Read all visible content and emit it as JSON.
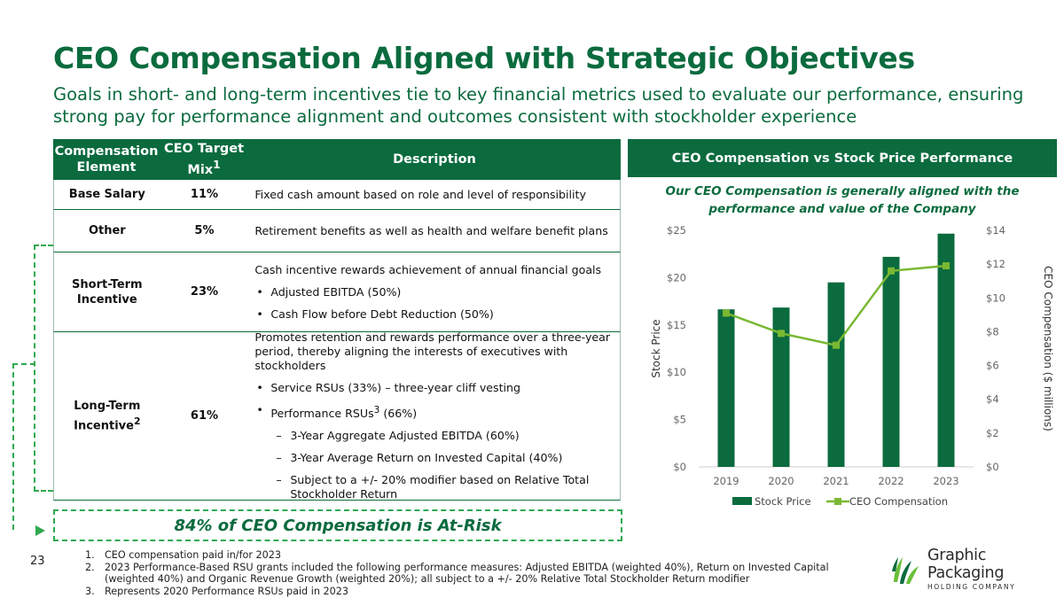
{
  "title": "CEO Compensation Aligned with Strategic Objectives",
  "subtitle": "Goals in short- and long-term incentives tie to key financial metrics used to evaluate our performance, ensuring strong pay for performance alignment and outcomes consistent with stockholder experience",
  "table": {
    "headers": {
      "element": "Compensation Element",
      "mix": "CEO Target Mix",
      "mix_sup": "1",
      "description": "Description"
    },
    "rows": [
      {
        "element": "Base Salary",
        "mix": "11%",
        "description": "Fixed cash amount based on role and level of responsibility"
      },
      {
        "element": "Other",
        "mix": "5%",
        "description": "Retirement benefits as well as health and welfare benefit plans"
      },
      {
        "element": "Short-Term Incentive",
        "mix": "23%",
        "description": "Cash incentive rewards achievement of annual financial goals",
        "bullets": [
          "Adjusted EBITDA (50%)",
          "Cash Flow before Debt Reduction (50%)"
        ]
      },
      {
        "element": "Long-Term Incentive",
        "element_sup": "2",
        "mix": "61%",
        "description": "Promotes retention and rewards performance over a three-year period, thereby aligning the interests of executives with stockholders",
        "bullets": [
          "Service RSUs (33%) – three-year cliff vesting"
        ],
        "perf_bullet": "Performance RSUs",
        "perf_sup": "3",
        "perf_tail": " (66%)",
        "sub_bullets": [
          "3-Year Aggregate Adjusted EBITDA (60%)",
          "3-Year Average Return on Invested Capital (40%)",
          "Subject to a +/- 20% modifier based on Relative Total Stockholder Return"
        ]
      }
    ]
  },
  "at_risk": "84% of CEO Compensation is At-Risk",
  "chart_header": "CEO Compensation vs Stock Price Performance",
  "chart_subtitle": "Our CEO Compensation is generally aligned with the performance and value of the Company",
  "chart_data": {
    "type": "bar",
    "categories": [
      "2019",
      "2020",
      "2021",
      "2022",
      "2023"
    ],
    "series": [
      {
        "name": "Stock Price",
        "type": "bar",
        "axis": "left",
        "values": [
          16.65,
          16.84,
          19.5,
          22.2,
          24.65
        ],
        "color": "#0b6b3e"
      },
      {
        "name": "CEO Compensation",
        "type": "line",
        "axis": "right",
        "values": [
          9.1,
          7.9,
          7.2,
          11.6,
          11.9
        ],
        "color": "#7ab833"
      }
    ],
    "ylabel": "Stock Price",
    "ylabel_right": "CEO Compensation ($ millions)",
    "ylim": [
      0,
      25
    ],
    "ylim_right": [
      0,
      14
    ],
    "yticks": [
      "$0",
      "$5",
      "$10",
      "$15",
      "$20",
      "$25"
    ],
    "yticks_right": [
      "$0",
      "$2",
      "$4",
      "$6",
      "$8",
      "$10",
      "$12",
      "$14"
    ],
    "legend_position": "bottom",
    "grid": false
  },
  "footnotes": [
    {
      "num": "1.",
      "text": "CEO compensation paid in/for 2023"
    },
    {
      "num": "2.",
      "text": "2023 Performance-Based RSU grants included the following performance measures: Adjusted EBITDA (weighted 40%), Return on Invested Capital (weighted 40%) and Organic Revenue Growth (weighted 20%); all subject to a +/- 20% Relative Total Stockholder Return modifier"
    },
    {
      "num": "3.",
      "text": "Represents 2020 Performance RSUs paid in 2023"
    }
  ],
  "page_number": "23",
  "logo": {
    "name": "Graphic Packaging",
    "sub": "HOLDING COMPANY"
  },
  "colors": {
    "brand_green": "#0b6b3e",
    "accent_green": "#7ab833",
    "dash_green": "#2fa84f"
  }
}
